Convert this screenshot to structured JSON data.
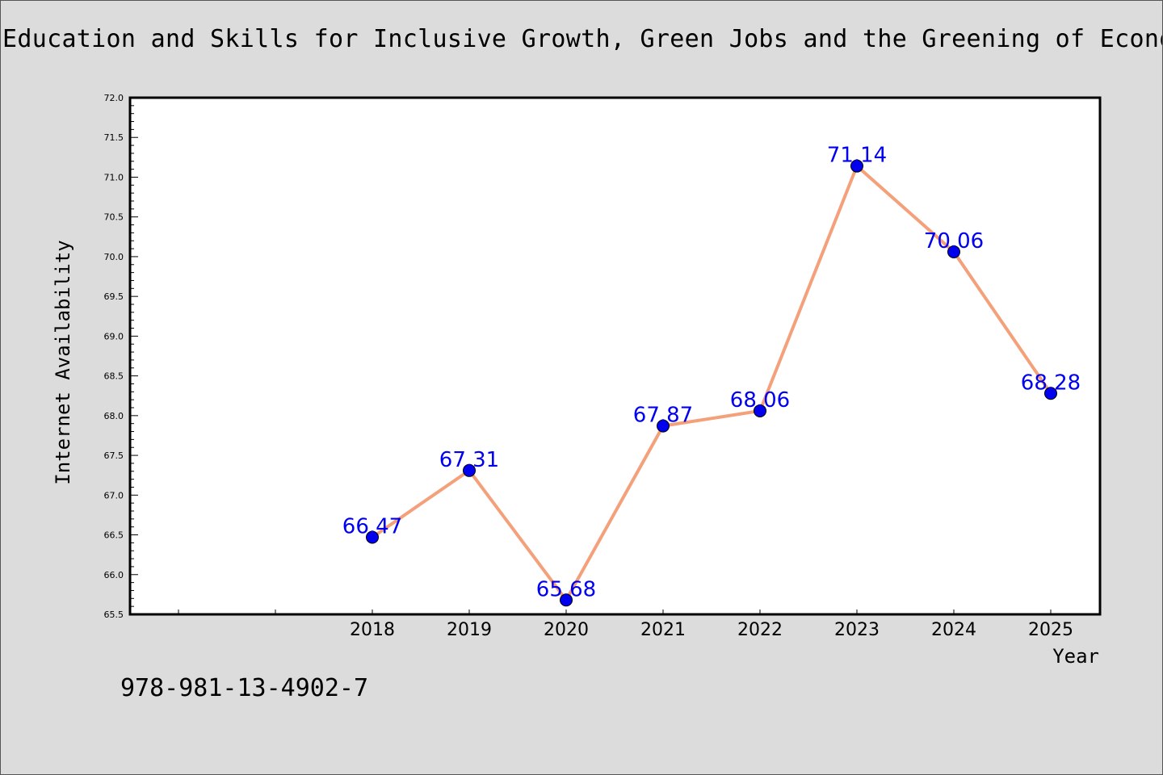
{
  "chart_data": {
    "type": "line",
    "title": "Education and Skills for Inclusive Growth, Green Jobs and the Greening of Econom",
    "xlabel": "Year",
    "ylabel": "Internet Availability",
    "x": [
      "2018",
      "2019",
      "2020",
      "2021",
      "2022",
      "2023",
      "2024",
      "2025"
    ],
    "series": [
      {
        "values": [
          66.47,
          67.31,
          65.68,
          67.87,
          68.06,
          71.14,
          70.06,
          68.28
        ]
      }
    ],
    "data_labels": [
      "66.47",
      "67.31",
      "65.68",
      "67.87",
      "68.06",
      "71.14",
      "70.06",
      "68.28"
    ],
    "ylim": [
      65.5,
      72.0
    ],
    "yticks": [
      "65.5",
      "66.0",
      "66.5",
      "67.0",
      "67.5",
      "68.0",
      "68.5",
      "69.0",
      "69.5",
      "70.0",
      "70.5",
      "71.0",
      "71.5",
      "72.0"
    ],
    "grid": false,
    "legend": "none",
    "line_color": "#f4a07a",
    "marker_color": "#0000ee",
    "label_color": "#0000ee",
    "background_color": "#dcdcdc",
    "plot_background": "#ffffff"
  },
  "footer": {
    "isbn": "978-981-13-4902-7"
  }
}
